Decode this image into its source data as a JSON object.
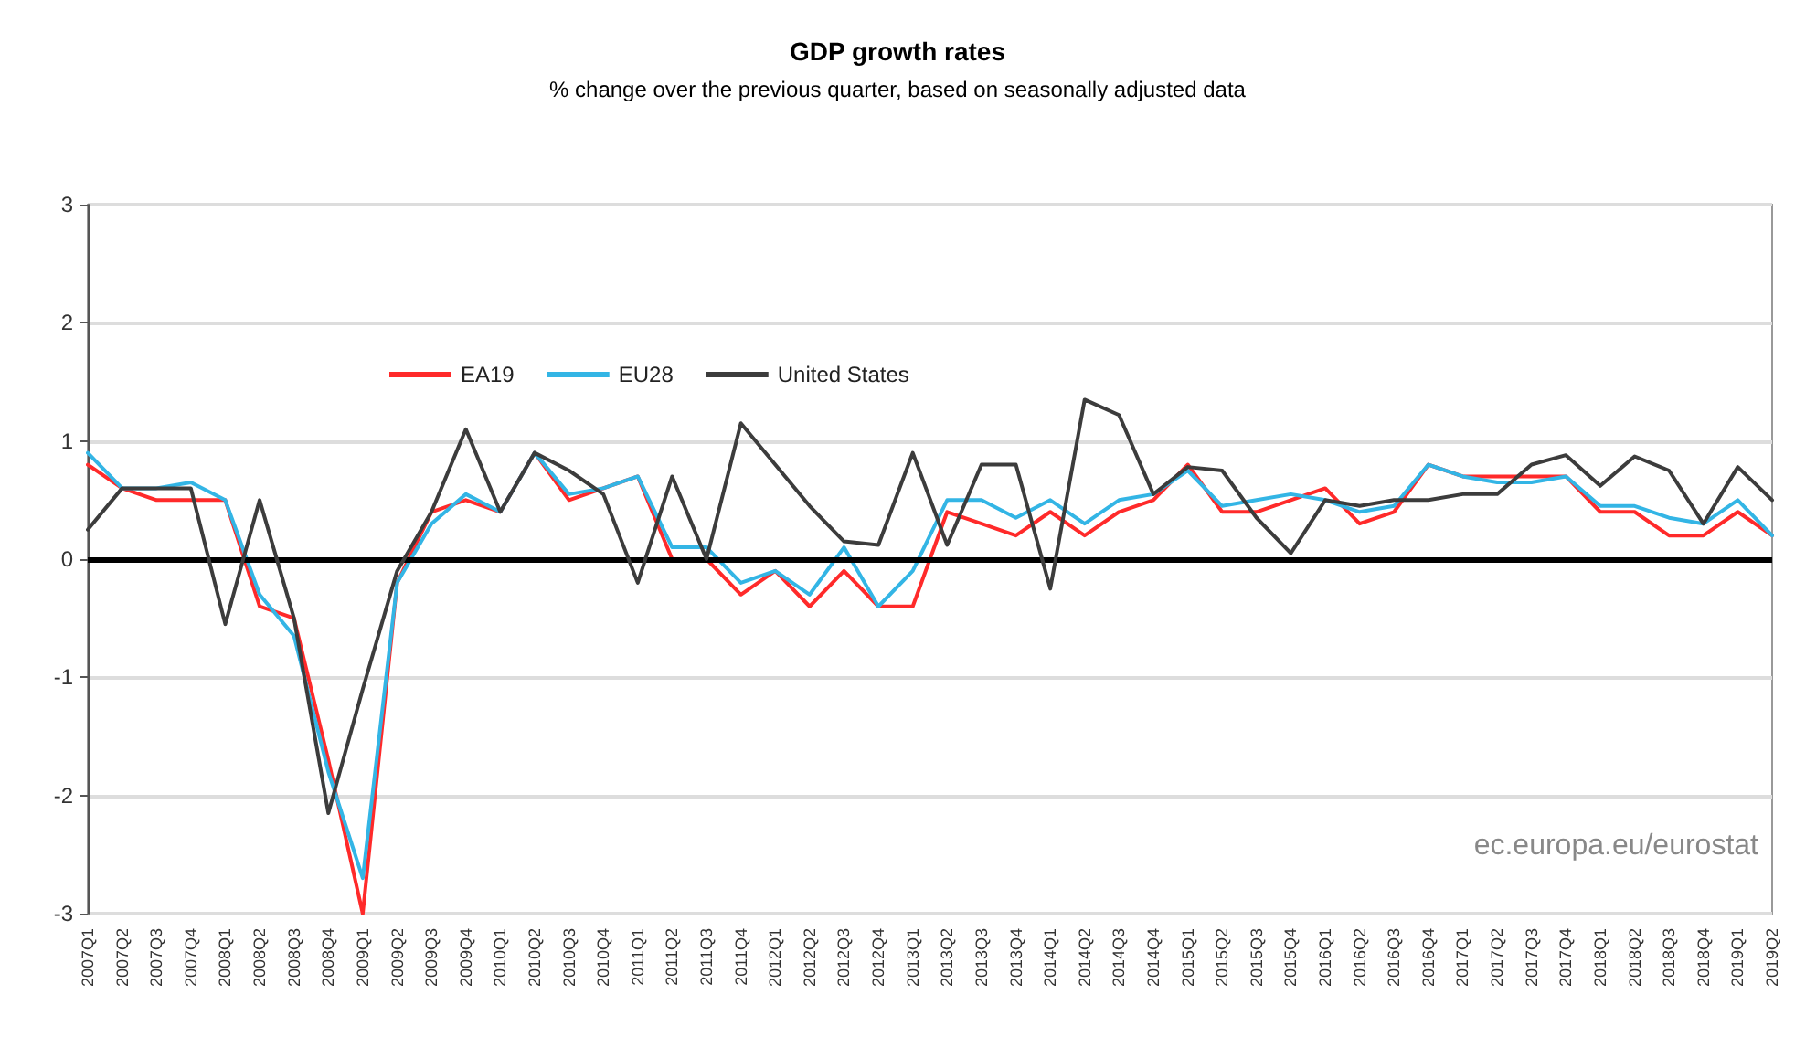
{
  "chart_data": {
    "type": "line",
    "title": "GDP growth rates",
    "subtitle": "% change over the previous quarter, based on seasonally adjusted data",
    "categories": [
      "2007Q1",
      "2007Q2",
      "2007Q3",
      "2007Q4",
      "2008Q1",
      "2008Q2",
      "2008Q3",
      "2008Q4",
      "2009Q1",
      "2009Q2",
      "2009Q3",
      "2009Q4",
      "2010Q1",
      "2010Q2",
      "2010Q3",
      "2010Q4",
      "2011Q1",
      "2011Q2",
      "2011Q3",
      "2011Q4",
      "2012Q1",
      "2012Q2",
      "2012Q3",
      "2012Q4",
      "2013Q1",
      "2013Q2",
      "2013Q3",
      "2013Q4",
      "2014Q1",
      "2014Q2",
      "2014Q3",
      "2014Q4",
      "2015Q1",
      "2015Q2",
      "2015Q3",
      "2015Q4",
      "2016Q1",
      "2016Q2",
      "2016Q3",
      "2016Q4",
      "2017Q1",
      "2017Q2",
      "2017Q3",
      "2017Q4",
      "2018Q1",
      "2018Q2",
      "2018Q3",
      "2018Q4",
      "2019Q1",
      "2019Q2"
    ],
    "series": [
      {
        "name": "EA19",
        "color": "#ff2a2a",
        "values": [
          0.8,
          0.6,
          0.5,
          0.5,
          0.5,
          -0.4,
          -0.5,
          -1.7,
          -3.0,
          -0.2,
          0.4,
          0.5,
          0.4,
          0.9,
          0.5,
          0.6,
          0.7,
          0.0,
          0.0,
          -0.3,
          -0.1,
          -0.4,
          -0.1,
          -0.4,
          -0.4,
          0.4,
          0.3,
          0.2,
          0.4,
          0.2,
          0.4,
          0.5,
          0.8,
          0.4,
          0.4,
          0.5,
          0.6,
          0.3,
          0.4,
          0.8,
          0.7,
          0.7,
          0.7,
          0.7,
          0.4,
          0.4,
          0.2,
          0.2,
          0.4,
          0.2
        ]
      },
      {
        "name": "EU28",
        "color": "#33b5e5",
        "values": [
          0.9,
          0.6,
          0.6,
          0.65,
          0.5,
          -0.3,
          -0.65,
          -1.8,
          -2.7,
          -0.2,
          0.3,
          0.55,
          0.4,
          0.9,
          0.55,
          0.6,
          0.7,
          0.1,
          0.1,
          -0.2,
          -0.1,
          -0.3,
          0.1,
          -0.4,
          -0.1,
          0.5,
          0.5,
          0.35,
          0.5,
          0.3,
          0.5,
          0.55,
          0.75,
          0.45,
          0.5,
          0.55,
          0.5,
          0.4,
          0.45,
          0.8,
          0.7,
          0.65,
          0.65,
          0.7,
          0.45,
          0.45,
          0.35,
          0.3,
          0.5,
          0.2
        ]
      },
      {
        "name": "United States",
        "color": "#3c3c3c",
        "values": [
          0.25,
          0.6,
          0.6,
          0.6,
          -0.55,
          0.5,
          -0.5,
          -2.15,
          -1.1,
          -0.1,
          0.4,
          1.1,
          0.4,
          0.9,
          0.75,
          0.55,
          -0.2,
          0.7,
          0.0,
          1.15,
          0.8,
          0.45,
          0.15,
          0.12,
          0.9,
          0.12,
          0.8,
          0.8,
          -0.25,
          1.35,
          1.22,
          0.55,
          0.78,
          0.75,
          0.35,
          0.05,
          0.5,
          0.45,
          0.5,
          0.5,
          0.55,
          0.55,
          0.8,
          0.88,
          0.62,
          0.87,
          0.75,
          0.3,
          0.78,
          0.5
        ]
      }
    ],
    "ylim": [
      -3,
      3
    ],
    "yticks": [
      -3,
      -2,
      -1,
      0,
      1,
      2,
      3
    ],
    "grid": "y",
    "legend": "top left",
    "marker": "none",
    "line_style": "solid",
    "ref_lines": [
      {
        "axis": "y",
        "value": 0,
        "color": "#000000"
      }
    ],
    "annotations": [
      "ec.europa.eu/eurostat"
    ]
  }
}
